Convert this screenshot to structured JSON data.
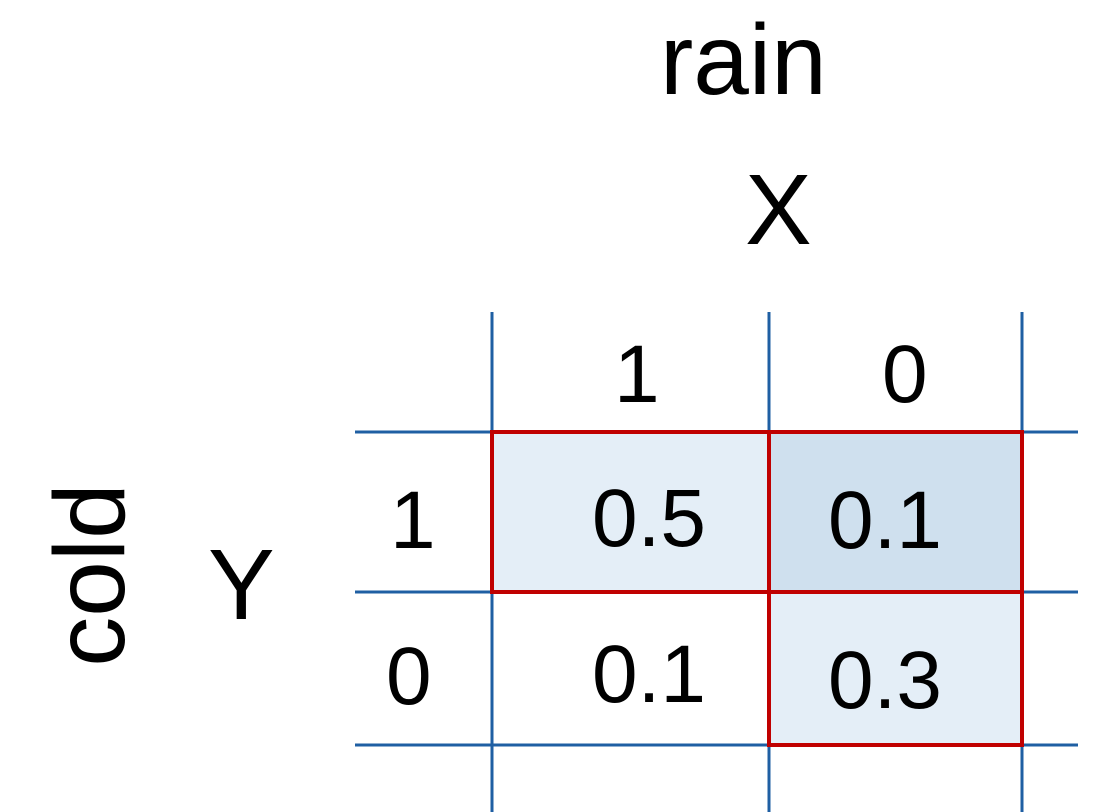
{
  "labels": {
    "x_name": "rain",
    "x_var": "X",
    "y_name": "cold",
    "y_var": "Y"
  },
  "columns": [
    "1",
    "0"
  ],
  "rows": [
    "1",
    "0"
  ],
  "cells": {
    "r1_c1": "0.5",
    "r1_c0": "0.1",
    "r0_c1": "0.1",
    "r0_c0": "0.3"
  },
  "colors": {
    "grid": "#1f5fa3",
    "highlight_border": "#c00000",
    "fill_light": "#e4eef7",
    "fill_dark": "#cfe0ee"
  }
}
